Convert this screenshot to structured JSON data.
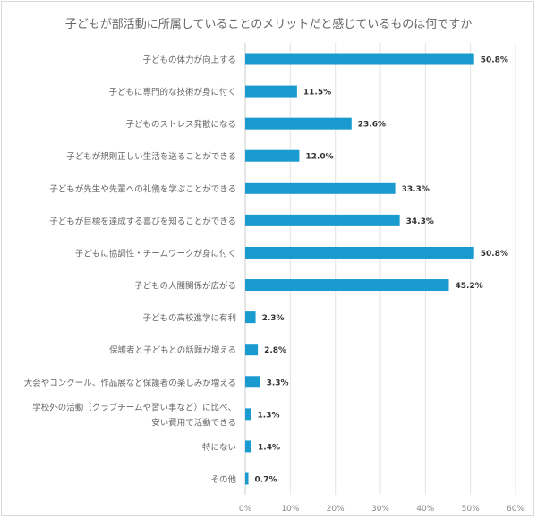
{
  "chart_data": {
    "type": "bar",
    "orientation": "horizontal",
    "title": "子どもが部活動に所属していることのメリットだと感じているものは何ですか",
    "categories": [
      "子どもの体力が向上する",
      "子どもに専門的な技術が身に付く",
      "子どものストレス発散になる",
      "子どもが規則正しい生活を送ることができる",
      "子どもが先生や先輩への礼儀を学ぶことができる",
      "子どもが目標を達成する喜びを知ることができる",
      "子どもに協調性・チームワークが身に付く",
      "子どもの人間関係が広がる",
      "子どもの高校進学に有利",
      "保護者と子どもとの話題が増える",
      "大会やコンクール、作品展など保護者の楽しみが増える",
      [
        "学校外の活動（クラブチームや習い事など）に比べ、",
        "安い費用で活動できる"
      ],
      "特にない",
      "その他"
    ],
    "values": [
      50.8,
      11.5,
      23.6,
      12.0,
      33.3,
      34.3,
      50.8,
      45.2,
      2.3,
      2.8,
      3.3,
      1.3,
      1.4,
      0.7
    ],
    "data_labels": [
      "50.8%",
      "11.5%",
      "23.6%",
      "12.0%",
      "33.3%",
      "34.3%",
      "50.8%",
      "45.2%",
      "2.3%",
      "2.8%",
      "3.3%",
      "1.3%",
      "1.4%",
      "0.7%"
    ],
    "xlim": [
      0,
      60
    ],
    "xticks": [
      "0%",
      "10%",
      "20%",
      "30%",
      "40%",
      "50%",
      "60%"
    ],
    "grid": true,
    "bar_color": "#1a9bd0"
  }
}
